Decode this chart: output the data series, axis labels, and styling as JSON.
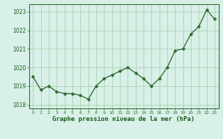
{
  "x": [
    0,
    1,
    2,
    3,
    4,
    5,
    6,
    7,
    8,
    9,
    10,
    11,
    12,
    13,
    14,
    15,
    16,
    17,
    18,
    19,
    20,
    21,
    22,
    23
  ],
  "y": [
    1019.5,
    1018.8,
    1019.0,
    1018.7,
    1018.6,
    1018.6,
    1018.5,
    1018.3,
    1019.0,
    1019.4,
    1019.6,
    1019.8,
    1020.0,
    1019.7,
    1019.4,
    1019.0,
    1019.4,
    1020.0,
    1020.9,
    1021.0,
    1021.8,
    1022.2,
    1023.1,
    1022.6
  ],
  "line_color": "#2d6a2d",
  "marker_color": "#2d6a2d",
  "background_color": "#d8f0e8",
  "grid_color": "#aacfaa",
  "xlabel": "Graphe pression niveau de la mer (hPa)",
  "xlabel_color": "#1a5c1a",
  "tick_color": "#1a5c1a",
  "spine_color": "#2d6a2d",
  "ylim": [
    1017.8,
    1023.4
  ],
  "xlim": [
    -0.5,
    23.5
  ],
  "yticks": [
    1018,
    1019,
    1020,
    1021,
    1022,
    1023
  ],
  "xticks": [
    0,
    1,
    2,
    3,
    4,
    5,
    6,
    7,
    8,
    9,
    10,
    11,
    12,
    13,
    14,
    15,
    16,
    17,
    18,
    19,
    20,
    21,
    22,
    23
  ],
  "xtick_labels": [
    "0",
    "1",
    "2",
    "3",
    "4",
    "5",
    "6",
    "7",
    "8",
    "9",
    "10",
    "11",
    "12",
    "13",
    "14",
    "15",
    "16",
    "17",
    "18",
    "19",
    "20",
    "21",
    "22",
    "23"
  ],
  "linewidth": 1.0,
  "markersize": 2.5,
  "xlabel_fontsize": 6.5,
  "ytick_fontsize": 5.5,
  "xtick_fontsize": 4.5
}
